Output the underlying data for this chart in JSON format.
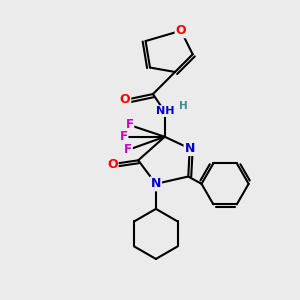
{
  "background_color": "#ebebeb",
  "bond_color": "#000000",
  "atom_colors": {
    "O": "#ff0000",
    "N": "#0000cc",
    "F": "#cc00cc",
    "H": "#3a9090",
    "C": "#000000"
  },
  "figsize": [
    3.0,
    3.0
  ],
  "dpi": 100
}
